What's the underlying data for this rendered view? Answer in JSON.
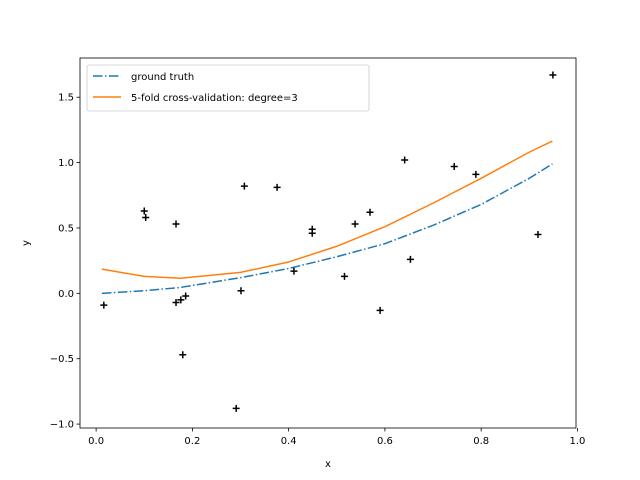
{
  "chart_data": {
    "type": "line",
    "title": "",
    "xlabel": "x",
    "ylabel": "y",
    "xlim": [
      -0.0335,
      0.997
    ],
    "ylim": [
      -1.03,
      1.8
    ],
    "xticks": [
      0.0,
      0.2,
      0.4,
      0.6,
      0.8,
      1.0
    ],
    "xtick_labels": [
      "0.0",
      "0.2",
      "0.4",
      "0.6",
      "0.8",
      "1.0"
    ],
    "yticks": [
      -1.0,
      -0.5,
      0.0,
      0.5,
      1.0,
      1.5
    ],
    "ytick_labels": [
      "−1.0",
      "−0.5",
      "0.0",
      "0.5",
      "1.0",
      "1.5"
    ],
    "grid": false,
    "legend_position": "top-left",
    "series": [
      {
        "name": "ground truth",
        "kind": "line",
        "style": "dashdot",
        "color": "#1f77b4",
        "x": [
          0.012,
          0.1,
          0.175,
          0.3,
          0.4,
          0.5,
          0.6,
          0.7,
          0.8,
          0.9,
          0.948
        ],
        "y": [
          0.0,
          0.02,
          0.045,
          0.12,
          0.19,
          0.28,
          0.38,
          0.52,
          0.68,
          0.88,
          0.99
        ]
      },
      {
        "name": "5-fold cross-validation: degree=3",
        "kind": "line",
        "style": "solid",
        "color": "#ff7f0e",
        "x": [
          0.012,
          0.1,
          0.175,
          0.3,
          0.4,
          0.5,
          0.6,
          0.7,
          0.8,
          0.9,
          0.948
        ],
        "y": [
          0.185,
          0.13,
          0.115,
          0.16,
          0.24,
          0.36,
          0.51,
          0.69,
          0.88,
          1.08,
          1.165
        ]
      },
      {
        "name": "samples",
        "kind": "scatter",
        "marker": "+",
        "color": "#000000",
        "points": [
          [
            0.016,
            -0.09
          ],
          [
            0.1,
            0.63
          ],
          [
            0.103,
            0.58
          ],
          [
            0.166,
            0.53
          ],
          [
            0.166,
            -0.07
          ],
          [
            0.176,
            -0.05
          ],
          [
            0.186,
            -0.02
          ],
          [
            0.18,
            -0.47
          ],
          [
            0.291,
            -0.88
          ],
          [
            0.301,
            0.02
          ],
          [
            0.308,
            0.82
          ],
          [
            0.376,
            0.81
          ],
          [
            0.411,
            0.17
          ],
          [
            0.449,
            0.49
          ],
          [
            0.449,
            0.46
          ],
          [
            0.516,
            0.13
          ],
          [
            0.538,
            0.53
          ],
          [
            0.569,
            0.62
          ],
          [
            0.59,
            -0.13
          ],
          [
            0.641,
            1.02
          ],
          [
            0.653,
            0.26
          ],
          [
            0.744,
            0.97
          ],
          [
            0.789,
            0.91
          ],
          [
            0.918,
            0.45
          ],
          [
            0.949,
            1.67
          ]
        ]
      }
    ]
  }
}
